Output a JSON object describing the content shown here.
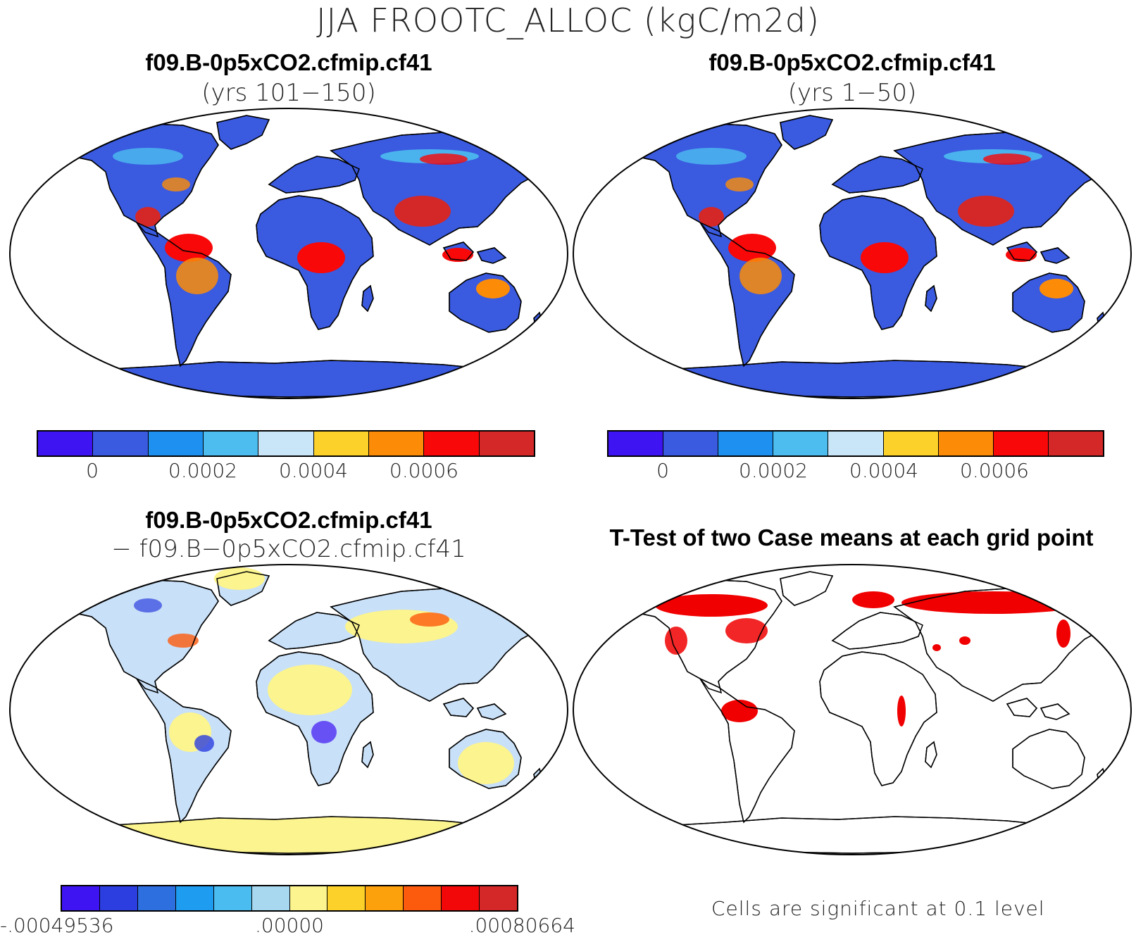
{
  "figure": {
    "title": "JJA FROOTC_ALLOC (kgC/m2d)"
  },
  "panels": [
    {
      "title": "f09.B-0p5xCO2.cfmip.cf41",
      "subtitle": "(yrs 101−150)"
    },
    {
      "title": "f09.B-0p5xCO2.cfmip.cf41",
      "subtitle": "(yrs 1−50)"
    },
    {
      "title": "f09.B-0p5xCO2.cfmip.cf41",
      "subtitle": "− f09.B−0p5xCO2.cfmip.cf41"
    },
    {
      "title": "T-Test of two Case means at each grid point",
      "subtitle": ""
    }
  ],
  "colorbar_abs": {
    "colors": [
      "#3e14f2",
      "#3a5ae0",
      "#1e90f0",
      "#4dbdf0",
      "#c8e6f8",
      "#fcd22a",
      "#fc8c08",
      "#f80808",
      "#d42828"
    ],
    "ticks": [
      "0",
      "0.0002",
      "0.0004",
      "0.0006"
    ]
  },
  "colorbar_diff": {
    "colors": [
      "#3e14f2",
      "#2c3ee0",
      "#2e6fe0",
      "#1e9cf0",
      "#4bbcf0",
      "#a8d8f0",
      "#fcf48e",
      "#fcd22a",
      "#fca00c",
      "#fc5a0c",
      "#f20808",
      "#d42828"
    ],
    "ticks": [
      "-.00049536",
      ".00000",
      ".00080664"
    ]
  },
  "ttest": {
    "note": "Cells are significant at 0.1 level",
    "sig_color": "#f00000"
  },
  "map_colors": {
    "land_abs": "#3a5ae0",
    "land_diff": "#c8e0f8",
    "antarctica_diff": "#fcf48e",
    "antarctica_abs": "#3a5ae0"
  }
}
